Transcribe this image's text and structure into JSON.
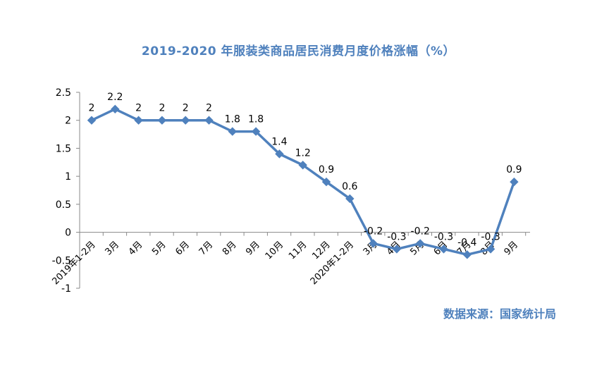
{
  "title": "2019-2020 年服装类商品居民消费月度价格涨幅（%）",
  "source": "数据来源：国家统计局",
  "colors": {
    "line": "#4f81bd",
    "title": "#4f81bd",
    "axis": "#888888",
    "text": "#000000"
  },
  "chart_data": {
    "type": "line",
    "title": "2019-2020 年服装类商品居民消费月度价格涨幅（%）",
    "xlabel": "",
    "ylabel": "",
    "ylim": [
      -1,
      2.5
    ],
    "yticks": [
      -1,
      -0.5,
      0,
      0.5,
      1,
      1.5,
      2,
      2.5
    ],
    "ytick_labels": [
      "-1",
      "-0.5",
      "0",
      "0.5",
      "1",
      "1.5",
      "2",
      "2.5"
    ],
    "grid": false,
    "legend": "none",
    "categories": [
      "2019年1-2月",
      "3月",
      "4月",
      "5月",
      "6月",
      "7月",
      "8月",
      "9月",
      "10月",
      "11月",
      "12月",
      "2020年1-2月",
      "3月",
      "4月",
      "5月",
      "6月",
      "7月",
      "8月",
      "9月"
    ],
    "series": [
      {
        "name": "服装类商品居民消费价格涨幅",
        "values": [
          2,
          2.2,
          2,
          2,
          2,
          2,
          1.8,
          1.8,
          1.4,
          1.2,
          0.9,
          0.6,
          -0.2,
          -0.3,
          -0.2,
          -0.3,
          -0.4,
          -0.3,
          0.9
        ],
        "labels": [
          "2",
          "2.2",
          "2",
          "2",
          "2",
          "2",
          "1.8",
          "1.8",
          "1.4",
          "1.2",
          "0.9",
          "0.6",
          "-0.2",
          "-0.3",
          "-0.2",
          "-0.3",
          "-0.4",
          "-0.3",
          "0.9"
        ]
      }
    ],
    "source": "数据来源：国家统计局"
  }
}
